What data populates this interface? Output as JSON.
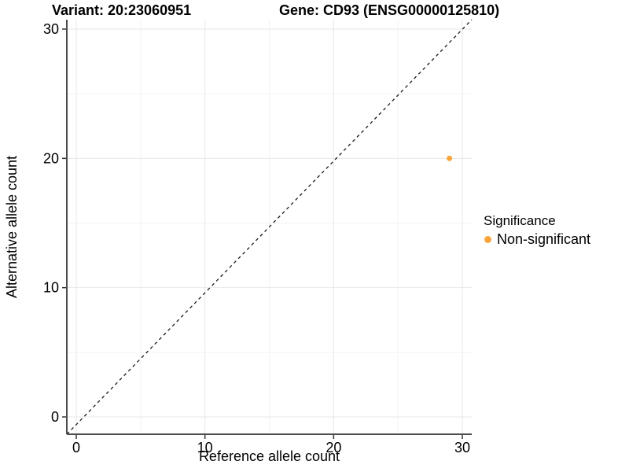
{
  "chart_data": {
    "type": "scatter",
    "titles": {
      "variant": "Variant: 20:23060951",
      "gene": "Gene: CD93 (ENSG00000125810)"
    },
    "xlabel": "Reference allele count",
    "ylabel": "Alternative allele count",
    "x_ticks": [
      0,
      10,
      20,
      30
    ],
    "y_ticks": [
      0,
      10,
      20,
      30
    ],
    "x_minor_ticks": [
      5,
      15,
      25
    ],
    "y_minor_ticks": [
      5,
      15,
      25
    ],
    "xlim": [
      -0.75,
      30.75
    ],
    "ylim": [
      -1.35,
      30.75
    ],
    "grid": "on",
    "points": [
      {
        "x": 29,
        "y": 20,
        "series": "Non-significant"
      }
    ],
    "reference_line": {
      "kind": "identity",
      "slope": 1,
      "intercept": 0,
      "style": "dashed"
    },
    "legend": {
      "position": "right",
      "title": "Significance",
      "items": [
        {
          "label": "Non-significant",
          "color": "#FAA43A"
        }
      ]
    },
    "colors": {
      "point": "#FAA43A",
      "reference_line": "#1a1a1a",
      "axis_line": "#4d4d4d",
      "tick_mark": "#333333",
      "text": "#000000",
      "grid_major": "#e7e7e7",
      "grid_minor": "#f3f3f3",
      "background": "#ffffff"
    }
  }
}
